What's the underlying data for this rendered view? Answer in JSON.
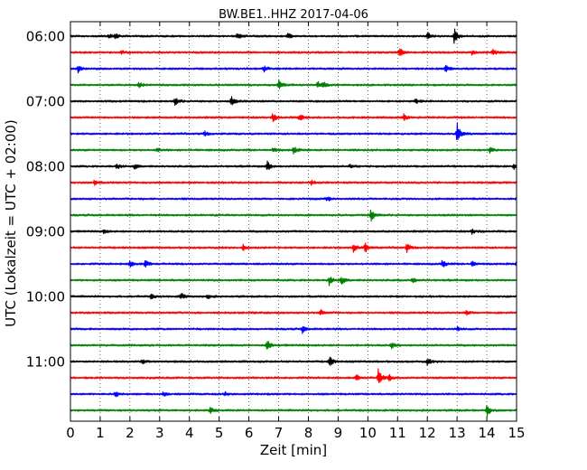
{
  "chart_data": {
    "type": "line",
    "title": "BW.BE1..HHZ 2017-04-06",
    "xlabel": "Zeit  [min]",
    "ylabel": "UTC (Lokalzeit = UTC + 02:00)",
    "xlim": [
      0,
      15
    ],
    "x_ticks": [
      0,
      1,
      2,
      3,
      4,
      5,
      6,
      7,
      8,
      9,
      10,
      11,
      12,
      13,
      14,
      15
    ],
    "x_grid": "dotted",
    "y_tick_labels": [
      "06:00",
      "07:00",
      "08:00",
      "09:00",
      "10:00",
      "11:00"
    ],
    "trace_interval_min": 15,
    "color_cycle": [
      "#000000",
      "#ff0000",
      "#0000ff",
      "#008000"
    ],
    "series": [
      {
        "start": "06:00",
        "events": [
          [
            1.3,
            0.25
          ],
          [
            1.5,
            0.35
          ],
          [
            5.6,
            0.45
          ],
          [
            7.3,
            0.4
          ],
          [
            12.0,
            0.5
          ],
          [
            12.9,
            1.0
          ]
        ]
      },
      {
        "start": "06:15",
        "events": [
          [
            1.7,
            0.3
          ],
          [
            11.05,
            0.7
          ],
          [
            13.5,
            0.3
          ],
          [
            14.2,
            0.45
          ]
        ]
      },
      {
        "start": "06:30",
        "events": [
          [
            0.25,
            0.7
          ],
          [
            6.5,
            0.35
          ],
          [
            12.6,
            0.5
          ]
        ]
      },
      {
        "start": "06:45",
        "events": [
          [
            2.3,
            0.35
          ],
          [
            7.0,
            0.6
          ],
          [
            8.3,
            0.45
          ],
          [
            8.5,
            0.4
          ]
        ]
      },
      {
        "start": "07:00",
        "events": [
          [
            3.5,
            0.6
          ],
          [
            5.4,
            0.6
          ],
          [
            11.6,
            0.3
          ]
        ]
      },
      {
        "start": "07:15",
        "events": [
          [
            6.8,
            0.5
          ],
          [
            7.7,
            0.5
          ],
          [
            11.2,
            0.4
          ]
        ]
      },
      {
        "start": "07:30",
        "events": [
          [
            4.5,
            0.3
          ],
          [
            13.0,
            1.5
          ]
        ]
      },
      {
        "start": "07:45",
        "events": [
          [
            2.9,
            0.3
          ],
          [
            6.8,
            0.3
          ],
          [
            7.5,
            0.55
          ],
          [
            14.1,
            0.35
          ]
        ]
      },
      {
        "start": "08:00",
        "events": [
          [
            1.55,
            0.35
          ],
          [
            2.15,
            0.35
          ],
          [
            6.6,
            0.75
          ],
          [
            9.4,
            0.3
          ],
          [
            14.9,
            0.45
          ]
        ]
      },
      {
        "start": "08:15",
        "events": [
          [
            0.8,
            0.3
          ],
          [
            8.1,
            0.3
          ]
        ]
      },
      {
        "start": "08:30",
        "events": [
          [
            8.6,
            0.35
          ]
        ]
      },
      {
        "start": "08:45",
        "events": [
          [
            10.1,
            0.85
          ]
        ]
      },
      {
        "start": "09:00",
        "events": [
          [
            1.1,
            0.3
          ],
          [
            13.5,
            0.3
          ]
        ]
      },
      {
        "start": "09:15",
        "events": [
          [
            5.8,
            0.4
          ],
          [
            9.5,
            0.6
          ],
          [
            9.9,
            0.7
          ],
          [
            11.3,
            0.6
          ]
        ]
      },
      {
        "start": "09:30",
        "events": [
          [
            2.0,
            0.5
          ],
          [
            2.5,
            0.55
          ],
          [
            12.5,
            0.5
          ],
          [
            13.5,
            0.4
          ],
          [
            15.0,
            0.3
          ]
        ]
      },
      {
        "start": "09:45",
        "events": [
          [
            8.7,
            0.6
          ],
          [
            9.1,
            0.6
          ],
          [
            11.5,
            0.35
          ]
        ]
      },
      {
        "start": "10:00",
        "events": [
          [
            2.7,
            0.3
          ],
          [
            3.7,
            0.5
          ],
          [
            4.6,
            0.3
          ]
        ]
      },
      {
        "start": "10:15",
        "events": [
          [
            8.4,
            0.35
          ],
          [
            13.3,
            0.3
          ]
        ]
      },
      {
        "start": "10:30",
        "events": [
          [
            7.8,
            0.5
          ],
          [
            13.0,
            0.3
          ]
        ]
      },
      {
        "start": "10:45",
        "events": [
          [
            6.6,
            0.7
          ],
          [
            10.8,
            0.4
          ]
        ]
      },
      {
        "start": "11:00",
        "events": [
          [
            2.4,
            0.3
          ],
          [
            8.7,
            0.7
          ],
          [
            12.0,
            0.4
          ]
        ]
      },
      {
        "start": "11:15",
        "events": [
          [
            9.6,
            0.4
          ],
          [
            10.35,
            1.2
          ],
          [
            10.7,
            0.4
          ]
        ]
      },
      {
        "start": "11:30",
        "events": [
          [
            1.5,
            0.5
          ],
          [
            3.1,
            0.3
          ],
          [
            5.2,
            0.3
          ]
        ]
      },
      {
        "start": "11:45",
        "events": [
          [
            4.7,
            0.35
          ],
          [
            14.0,
            0.85
          ]
        ]
      }
    ]
  }
}
